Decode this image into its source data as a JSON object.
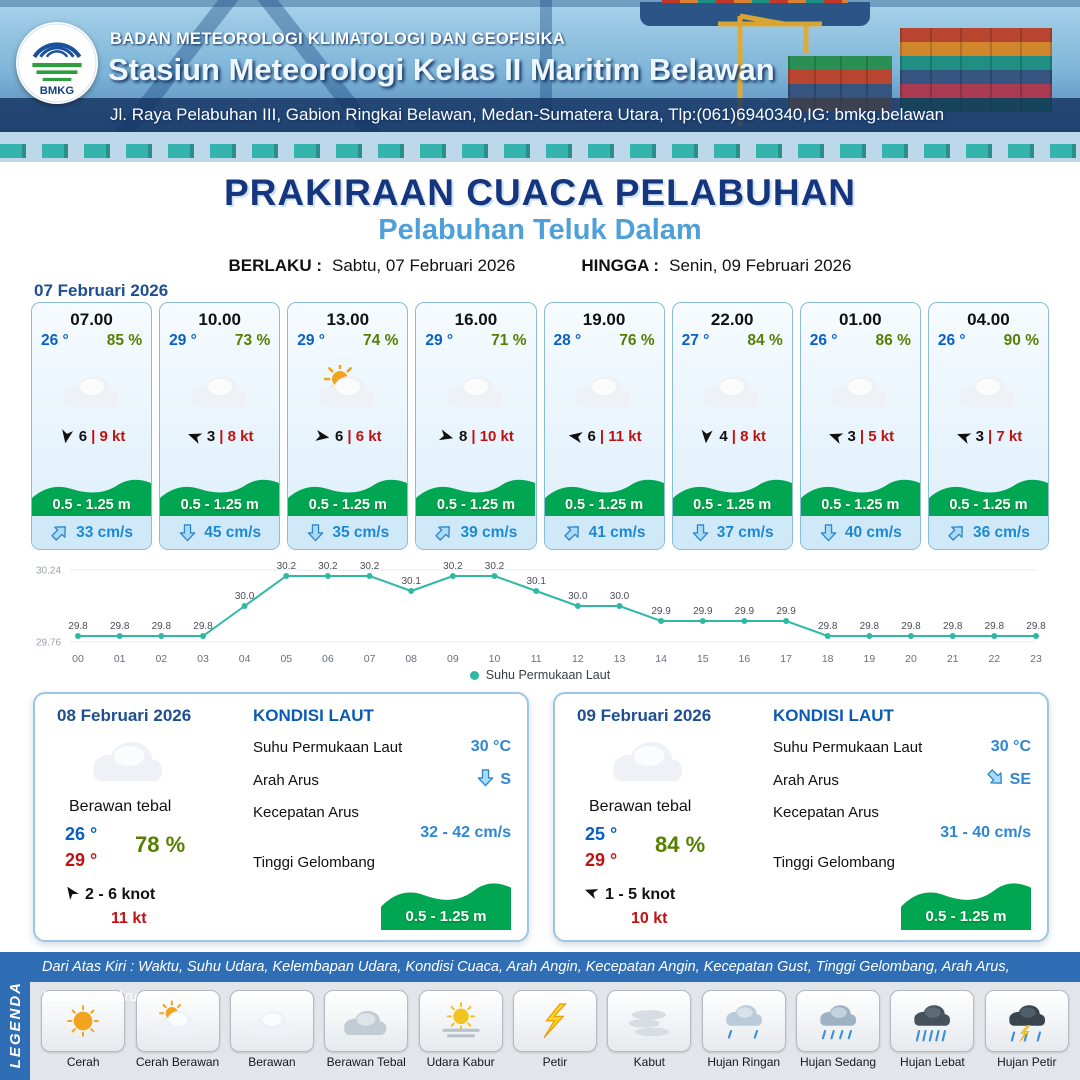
{
  "header": {
    "logo_text": "BMKG",
    "org": "BADAN METEOROLOGI KLIMATOLOGI DAN GEOFISIKA",
    "station": "Stasiun Meteorologi Kelas II Maritim Belawan",
    "address": "Jl. Raya Pelabuhan III, Gabion Ringkai Belawan, Medan-Sumatera Utara, Tlp:(061)6940340,IG: bmkg.belawan"
  },
  "title": {
    "main": "PRAKIRAAN CUACA PELABUHAN",
    "subtitle": "Pelabuhan Teluk Dalam",
    "berlaku_label": "BERLAKU :",
    "berlaku_value": "Sabtu, 07 Februari 2026",
    "hingga_label": "HINGGA :",
    "hingga_value": "Senin, 09 Februari 2026"
  },
  "hourly": {
    "date": "07 Februari 2026",
    "cards": [
      {
        "time": "07.00",
        "temp": "26 °",
        "humidity": "85 %",
        "icon": "berawan",
        "wind_rot": 100,
        "wind_speed": "6",
        "gust": "| 9 kt",
        "wave": "0.5 - 1.25 m",
        "current_dir": "NE",
        "current_speed": "33 cm/s"
      },
      {
        "time": "10.00",
        "temp": "29 °",
        "humidity": "73 %",
        "icon": "berawan",
        "wind_rot": 200,
        "wind_speed": "3",
        "gust": "| 8 kt",
        "wave": "0.5 - 1.25 m",
        "current_dir": "S",
        "current_speed": "45 cm/s"
      },
      {
        "time": "13.00",
        "temp": "29 °",
        "humidity": "74 %",
        "icon": "cerah-berawan",
        "wind_rot": 10,
        "wind_speed": "6",
        "gust": "| 6 kt",
        "wave": "0.5 - 1.25 m",
        "current_dir": "S",
        "current_speed": "35 cm/s"
      },
      {
        "time": "16.00",
        "temp": "29 °",
        "humidity": "71 %",
        "icon": "berawan",
        "wind_rot": 15,
        "wind_speed": "8",
        "gust": "| 10 kt",
        "wave": "0.5 - 1.25 m",
        "current_dir": "NE",
        "current_speed": "39 cm/s"
      },
      {
        "time": "19.00",
        "temp": "28 °",
        "humidity": "76 %",
        "icon": "berawan",
        "wind_rot": 190,
        "wind_speed": "6",
        "gust": "| 11 kt",
        "wave": "0.5 - 1.25 m",
        "current_dir": "NE",
        "current_speed": "41 cm/s"
      },
      {
        "time": "22.00",
        "temp": "27 °",
        "humidity": "84 %",
        "icon": "berawan",
        "wind_rot": 95,
        "wind_speed": "4",
        "gust": "| 8 kt",
        "wave": "0.5 - 1.25 m",
        "current_dir": "S",
        "current_speed": "37 cm/s"
      },
      {
        "time": "01.00",
        "temp": "26 °",
        "humidity": "86 %",
        "icon": "berawan",
        "wind_rot": 200,
        "wind_speed": "3",
        "gust": "| 5 kt",
        "wave": "0.5 - 1.25 m",
        "current_dir": "S",
        "current_speed": "40 cm/s"
      },
      {
        "time": "04.00",
        "temp": "26 °",
        "humidity": "90 %",
        "icon": "berawan",
        "wind_rot": 200,
        "wind_speed": "3",
        "gust": "| 7 kt",
        "wave": "0.5 - 1.25 m",
        "current_dir": "NE",
        "current_speed": "36 cm/s"
      }
    ]
  },
  "chart_data": {
    "type": "line",
    "series_name": "Suhu Permukaan Laut",
    "x": [
      "00",
      "01",
      "02",
      "03",
      "04",
      "05",
      "06",
      "07",
      "08",
      "09",
      "10",
      "11",
      "12",
      "13",
      "14",
      "15",
      "16",
      "17",
      "18",
      "19",
      "20",
      "21",
      "22",
      "23"
    ],
    "values": [
      29.8,
      29.8,
      29.8,
      29.8,
      30.0,
      30.2,
      30.2,
      30.2,
      30.1,
      30.2,
      30.2,
      30.1,
      30.0,
      30.0,
      29.9,
      29.9,
      29.9,
      29.9,
      29.8,
      29.8,
      29.8,
      29.8,
      29.8,
      29.8
    ],
    "ylim": [
      29.76,
      30.24
    ],
    "color": "#2fb9a5",
    "grid": false,
    "legend_position": "bottom"
  },
  "daily": [
    {
      "date": "08 Februari 2026",
      "icon": "berawan",
      "condition": "Berawan tebal",
      "temp_min": "26 °",
      "temp_max": "29 °",
      "humidity": "78 %",
      "wind_rot": 235,
      "wind": "2 - 6 knot",
      "gust": "11 kt",
      "sea": {
        "heading": "KONDISI LAUT",
        "sst_label": "Suhu Permukaan Laut",
        "sst": "30 °C",
        "current_dir_label": "Arah Arus",
        "current_dir": "S",
        "current_speed_label": "Kecepatan Arus",
        "current_speed": "32 - 42 cm/s",
        "wave_label": "Tinggi Gelombang",
        "wave": "0.5 - 1.25 m"
      }
    },
    {
      "date": "09 Februari 2026",
      "icon": "berawan",
      "condition": "Berawan tebal",
      "temp_min": "25 °",
      "temp_max": "29 °",
      "humidity": "84 %",
      "wind_rot": 200,
      "wind": "1 - 5 knot",
      "gust": "10 kt",
      "sea": {
        "heading": "KONDISI LAUT",
        "sst_label": "Suhu Permukaan Laut",
        "sst": "30 °C",
        "current_dir_label": "Arah Arus",
        "current_dir": "SE",
        "current_speed_label": "Kecepatan Arus",
        "current_speed": "31 - 40 cm/s",
        "wave_label": "Tinggi Gelombang",
        "wave": "0.5 - 1.25 m"
      }
    }
  ],
  "legend": {
    "vertical": "LEGENDA",
    "caption": "Dari Atas Kiri : Waktu, Suhu Udara, Kelembapan Udara, Kondisi Cuaca, Arah Angin, Kecepatan Angin, Kecepatan Gust, Tinggi Gelombang, Arah Arus, Kecepatan Arus",
    "items": [
      {
        "label": "Cerah",
        "icon": "cerah"
      },
      {
        "label": "Cerah Berawan",
        "icon": "cerah-berawan"
      },
      {
        "label": "Berawan",
        "icon": "berawan"
      },
      {
        "label": "Berawan Tebal",
        "icon": "berawan-tebal"
      },
      {
        "label": "Udara Kabur",
        "icon": "udara-kabur"
      },
      {
        "label": "Petir",
        "icon": "petir"
      },
      {
        "label": "Kabut",
        "icon": "kabut"
      },
      {
        "label": "Hujan Ringan",
        "icon": "hujan-ringan"
      },
      {
        "label": "Hujan Sedang",
        "icon": "hujan-sedang"
      },
      {
        "label": "Hujan Lebat",
        "icon": "hujan-lebat"
      },
      {
        "label": "Hujan Petir",
        "icon": "hujan-petir"
      }
    ]
  }
}
